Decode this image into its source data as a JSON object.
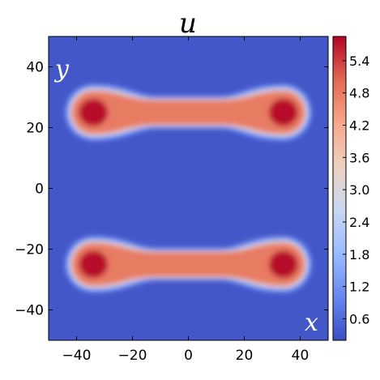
{
  "chart_data": {
    "type": "heatmap",
    "title": "u",
    "corner_labels": {
      "y": "y",
      "x": "x"
    },
    "xlim": [
      -50,
      50
    ],
    "ylim": [
      -50,
      50
    ],
    "x_ticks": [
      {
        "value": -40,
        "label": "−40"
      },
      {
        "value": -20,
        "label": "−20"
      },
      {
        "value": 0,
        "label": "0"
      },
      {
        "value": 20,
        "label": "20"
      },
      {
        "value": 40,
        "label": "40"
      }
    ],
    "y_ticks": [
      {
        "value": 40,
        "label": "40"
      },
      {
        "value": 20,
        "label": "20"
      },
      {
        "value": 0,
        "label": "0"
      },
      {
        "value": -20,
        "label": "−20"
      },
      {
        "value": -40,
        "label": "−40"
      }
    ],
    "colorbar": {
      "range": [
        0.2,
        5.85
      ],
      "ticks": [
        {
          "value": 0.6,
          "label": "0.6"
        },
        {
          "value": 1.2,
          "label": "1.2"
        },
        {
          "value": 1.8,
          "label": "1.8"
        },
        {
          "value": 2.4,
          "label": "2.4"
        },
        {
          "value": 3.0,
          "label": "3.0"
        },
        {
          "value": 3.6,
          "label": "3.6"
        },
        {
          "value": 4.2,
          "label": "4.2"
        },
        {
          "value": 4.8,
          "label": "4.8"
        },
        {
          "value": 5.4,
          "label": "5.4"
        }
      ],
      "colormap": [
        "#3b4cc0",
        "#6788ee",
        "#9abbff",
        "#c9d7f0",
        "#edd1c2",
        "#f7a889",
        "#e26952",
        "#b40426"
      ]
    },
    "background_value": 0.35,
    "structures": [
      {
        "name": "upper-band",
        "x_range": [
          -34,
          34
        ],
        "y_center": 25,
        "core_value": 5.0,
        "end_value": 5.8
      },
      {
        "name": "lower-band",
        "x_range": [
          -34,
          34
        ],
        "y_center": -25,
        "core_value": 5.0,
        "end_value": 5.8
      }
    ]
  }
}
